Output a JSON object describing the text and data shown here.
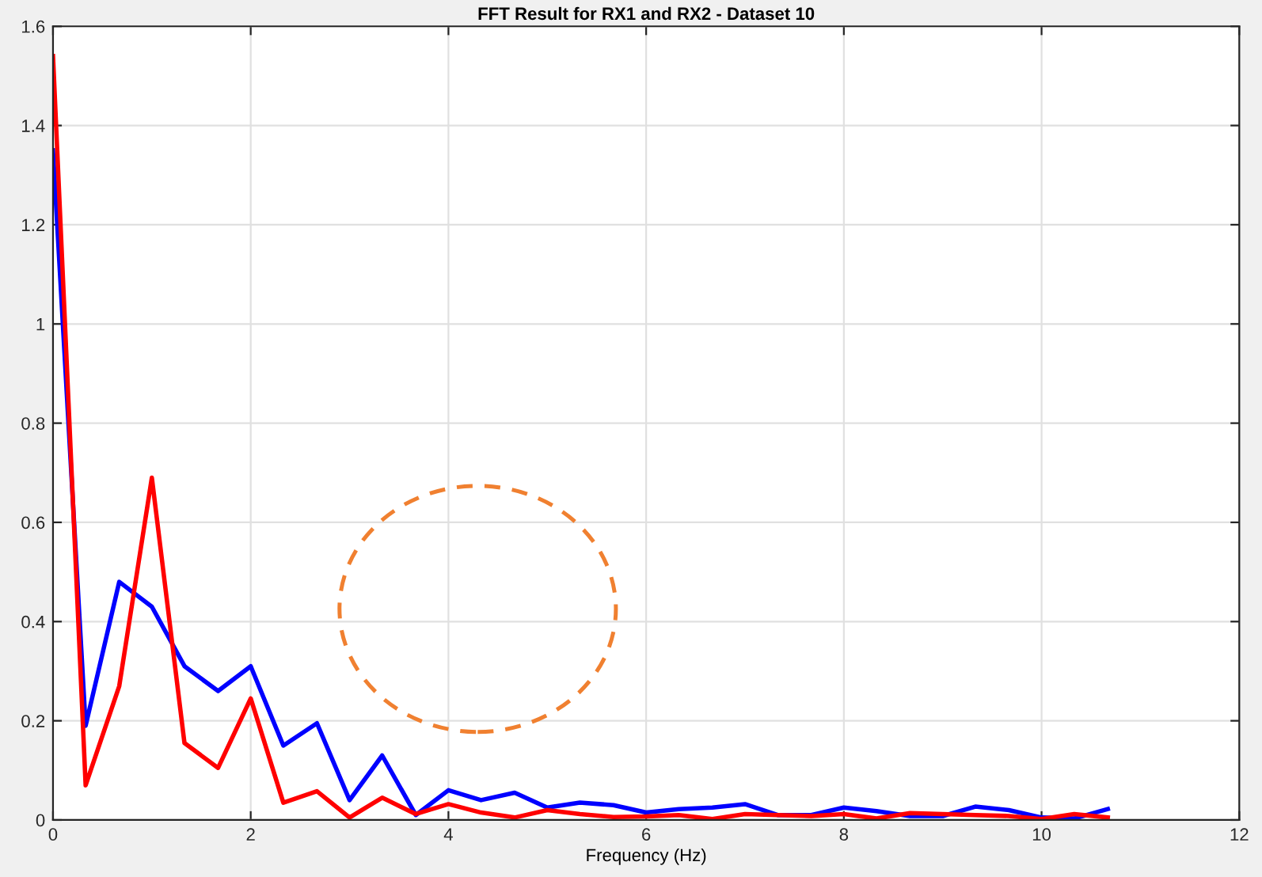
{
  "chart_data": {
    "type": "line",
    "title": "FFT Result for RX1 and RX2 - Dataset 10",
    "xlabel": "Frequency (Hz)",
    "x": [
      0,
      0.33,
      0.67,
      1,
      1.33,
      1.67,
      2,
      2.33,
      2.67,
      3,
      3.33,
      3.67,
      4,
      4.33,
      4.67,
      5,
      5.33,
      5.67,
      6,
      6.33,
      6.67,
      7,
      7.33,
      7.67,
      8,
      8.33,
      8.67,
      9,
      9.33,
      9.67,
      10,
      10.33,
      10.67
    ],
    "series": [
      {
        "color": "#0000ff",
        "values": [
          1.35,
          0.19,
          0.48,
          0.43,
          0.31,
          0.26,
          0.31,
          0.15,
          0.195,
          0.04,
          0.13,
          0.01,
          0.06,
          0.04,
          0.055,
          0.025,
          0.035,
          0.03,
          0.015,
          0.022,
          0.025,
          0.032,
          0.01,
          0.01,
          0.025,
          0.018,
          0.008,
          0.008,
          0.027,
          0.02,
          0.005,
          0.003,
          0.022
        ]
      },
      {
        "color": "#ff0000",
        "values": [
          1.54,
          0.07,
          0.27,
          0.69,
          0.155,
          0.105,
          0.245,
          0.035,
          0.058,
          0.005,
          0.045,
          0.012,
          0.032,
          0.015,
          0.005,
          0.02,
          0.012,
          0.006,
          0.007,
          0.01,
          0.002,
          0.012,
          0.01,
          0.008,
          0.012,
          0.003,
          0.014,
          0.012,
          0.01,
          0.008,
          0.002,
          0.012,
          0.005
        ]
      }
    ],
    "xlim": [
      0,
      12
    ],
    "xticks": [
      0,
      2,
      4,
      6,
      8,
      10,
      12
    ],
    "ylim": [
      0,
      1.6
    ],
    "yticks": [
      0,
      0.2,
      0.4,
      0.6,
      0.8,
      1,
      1.2,
      1.4,
      1.6
    ],
    "grid": true,
    "line_style": "solid",
    "marker": "none"
  }
}
